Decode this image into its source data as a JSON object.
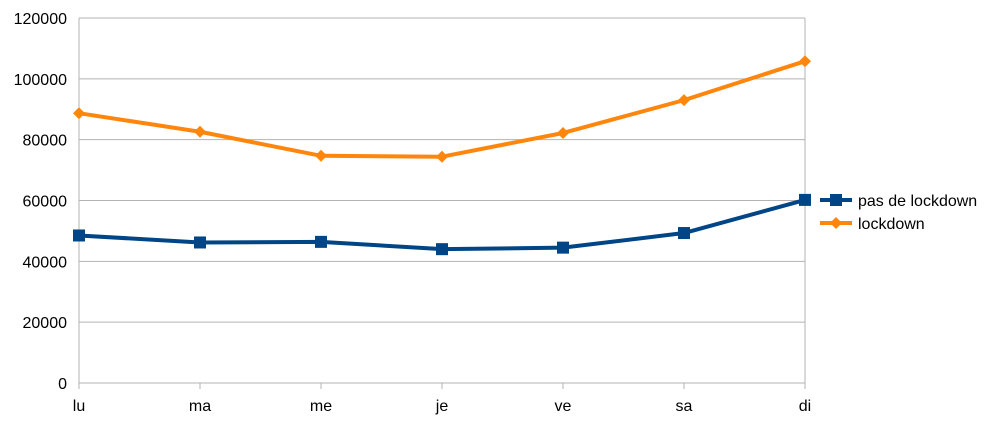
{
  "chart_data": {
    "type": "line",
    "title": "",
    "xlabel": "",
    "ylabel": "",
    "categories": [
      "lu",
      "ma",
      "me",
      "je",
      "ve",
      "sa",
      "di"
    ],
    "ylim": [
      0,
      120000
    ],
    "yticks": [
      0,
      20000,
      40000,
      60000,
      80000,
      100000,
      120000
    ],
    "grid": true,
    "legend_position": "right",
    "series": [
      {
        "name": "pas de lockdown",
        "color": "#004586",
        "marker": "square",
        "values": [
          48500,
          46200,
          46400,
          44000,
          44500,
          49300,
          60200
        ]
      },
      {
        "name": "lockdown",
        "color": "#ff860d",
        "marker": "diamond",
        "values": [
          88700,
          82600,
          74700,
          74400,
          82200,
          93000,
          105800
        ]
      }
    ]
  }
}
